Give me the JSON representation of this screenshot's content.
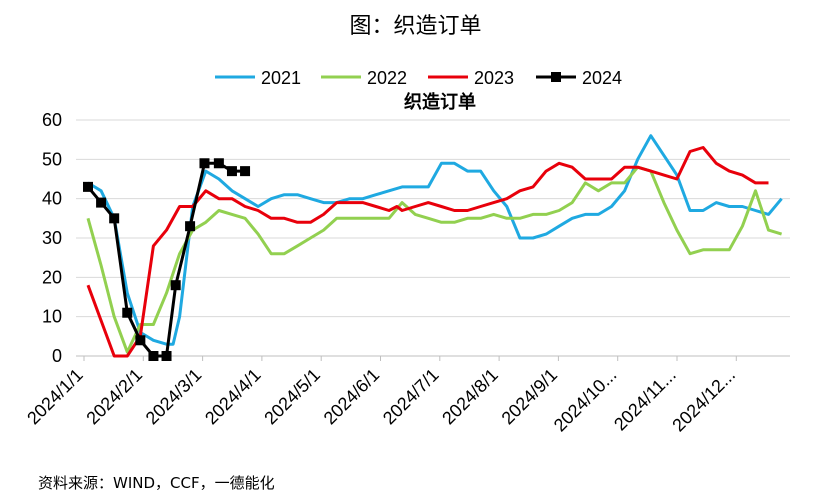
{
  "figure_title": "图：织造订单",
  "source_note": "资料来源：WIND，CCF，一德能化",
  "chart_data": {
    "type": "line",
    "title": "织造订单",
    "xlabel": "",
    "ylabel": "",
    "ylim": [
      0,
      60
    ],
    "yticks": [
      0,
      10,
      20,
      30,
      40,
      50,
      60
    ],
    "x_tick_labels": [
      "2024/1/1",
      "2024/2/1",
      "2024/3/1",
      "2024/4/1",
      "2024/5/1",
      "2024/6/1",
      "2024/7/1",
      "2024/8/1",
      "2024/9/1",
      "2024/10...",
      "2024/11...",
      "2024/12..."
    ],
    "x_range_weeks": [
      0,
      52
    ],
    "grid": "horizontal",
    "legend_position": "top",
    "series": [
      {
        "name": "2021",
        "color": "#1fa9e1",
        "marker": "none",
        "points": [
          [
            0,
            44
          ],
          [
            1,
            42
          ],
          [
            2,
            35
          ],
          [
            3,
            16
          ],
          [
            4,
            6
          ],
          [
            5,
            4
          ],
          [
            6,
            3
          ],
          [
            6.5,
            3
          ],
          [
            7,
            10
          ],
          [
            8,
            38
          ],
          [
            9,
            47
          ],
          [
            10,
            45
          ],
          [
            11,
            42
          ],
          [
            12,
            40
          ],
          [
            13,
            38
          ],
          [
            14,
            40
          ],
          [
            15,
            41
          ],
          [
            16,
            41
          ],
          [
            17,
            40
          ],
          [
            18,
            39
          ],
          [
            19,
            39
          ],
          [
            20,
            40
          ],
          [
            21,
            40
          ],
          [
            22,
            41
          ],
          [
            23,
            42
          ],
          [
            24,
            43
          ],
          [
            25,
            43
          ],
          [
            26,
            43
          ],
          [
            27,
            49
          ],
          [
            28,
            49
          ],
          [
            29,
            47
          ],
          [
            30,
            47
          ],
          [
            31,
            42
          ],
          [
            32,
            38
          ],
          [
            33,
            30
          ],
          [
            34,
            30
          ],
          [
            35,
            31
          ],
          [
            36,
            33
          ],
          [
            37,
            35
          ],
          [
            38,
            36
          ],
          [
            39,
            36
          ],
          [
            40,
            38
          ],
          [
            41,
            42
          ],
          [
            42,
            50
          ],
          [
            43,
            56
          ],
          [
            44,
            51
          ],
          [
            45,
            46
          ],
          [
            46,
            37
          ],
          [
            47,
            37
          ],
          [
            48,
            39
          ],
          [
            49,
            38
          ],
          [
            50,
            38
          ],
          [
            51,
            37
          ],
          [
            52,
            36
          ],
          [
            53,
            40
          ]
        ]
      },
      {
        "name": "2022",
        "color": "#92d050",
        "marker": "none",
        "points": [
          [
            0,
            35
          ],
          [
            1,
            23
          ],
          [
            2,
            10
          ],
          [
            3,
            1
          ],
          [
            4,
            8
          ],
          [
            5,
            8
          ],
          [
            6,
            16
          ],
          [
            7,
            26
          ],
          [
            8,
            32
          ],
          [
            9,
            34
          ],
          [
            10,
            37
          ],
          [
            11,
            36
          ],
          [
            12,
            35
          ],
          [
            13,
            31
          ],
          [
            14,
            26
          ],
          [
            15,
            26
          ],
          [
            16,
            28
          ],
          [
            17,
            30
          ],
          [
            18,
            32
          ],
          [
            19,
            35
          ],
          [
            20,
            35
          ],
          [
            21,
            35
          ],
          [
            22,
            35
          ],
          [
            23,
            35
          ],
          [
            24,
            39
          ],
          [
            25,
            36
          ],
          [
            26,
            35
          ],
          [
            27,
            34
          ],
          [
            28,
            34
          ],
          [
            29,
            35
          ],
          [
            30,
            35
          ],
          [
            31,
            36
          ],
          [
            32,
            35
          ],
          [
            33,
            35
          ],
          [
            34,
            36
          ],
          [
            35,
            36
          ],
          [
            36,
            37
          ],
          [
            37,
            39
          ],
          [
            38,
            44
          ],
          [
            39,
            42
          ],
          [
            40,
            44
          ],
          [
            41,
            44
          ],
          [
            42,
            48
          ],
          [
            43,
            47
          ],
          [
            44,
            39
          ],
          [
            45,
            32
          ],
          [
            46,
            26
          ],
          [
            47,
            27
          ],
          [
            48,
            27
          ],
          [
            49,
            27
          ],
          [
            50,
            33
          ],
          [
            51,
            42
          ],
          [
            52,
            32
          ],
          [
            53,
            31
          ]
        ]
      },
      {
        "name": "2023",
        "color": "#e8000b",
        "marker": "none",
        "points": [
          [
            0,
            18
          ],
          [
            1,
            9
          ],
          [
            2,
            0
          ],
          [
            3,
            0
          ],
          [
            4,
            5
          ],
          [
            5,
            28
          ],
          [
            6,
            32
          ],
          [
            7,
            38
          ],
          [
            8,
            38
          ],
          [
            9,
            42
          ],
          [
            10,
            40
          ],
          [
            11,
            40
          ],
          [
            12,
            38
          ],
          [
            13,
            37
          ],
          [
            14,
            35
          ],
          [
            15,
            35
          ],
          [
            16,
            34
          ],
          [
            17,
            34
          ],
          [
            18,
            36
          ],
          [
            19,
            39
          ],
          [
            20,
            39
          ],
          [
            21,
            39
          ],
          [
            22,
            38
          ],
          [
            23,
            37
          ],
          [
            23.6,
            38
          ],
          [
            24,
            37
          ],
          [
            25,
            38
          ],
          [
            26,
            39
          ],
          [
            27,
            38
          ],
          [
            28,
            37
          ],
          [
            29,
            37
          ],
          [
            30,
            38
          ],
          [
            31,
            39
          ],
          [
            32,
            40
          ],
          [
            33,
            42
          ],
          [
            34,
            43
          ],
          [
            35,
            47
          ],
          [
            36,
            49
          ],
          [
            37,
            48
          ],
          [
            38,
            45
          ],
          [
            39,
            45
          ],
          [
            40,
            45
          ],
          [
            41,
            48
          ],
          [
            42,
            48
          ],
          [
            43,
            47
          ],
          [
            44,
            46
          ],
          [
            45,
            45
          ],
          [
            46,
            52
          ],
          [
            47,
            53
          ],
          [
            48,
            49
          ],
          [
            49,
            47
          ],
          [
            50,
            46
          ],
          [
            51,
            44
          ],
          [
            52,
            44
          ]
        ]
      },
      {
        "name": "2024",
        "color": "#000000",
        "marker": "square",
        "points": [
          [
            0,
            43
          ],
          [
            1,
            39
          ],
          [
            2,
            35
          ],
          [
            3,
            11
          ],
          [
            4,
            4
          ],
          [
            5,
            0
          ],
          [
            6,
            0
          ],
          [
            6.7,
            18
          ],
          [
            7.8,
            33
          ],
          [
            8.9,
            49
          ],
          [
            10,
            49
          ],
          [
            11,
            47
          ],
          [
            12,
            47
          ]
        ]
      }
    ]
  }
}
